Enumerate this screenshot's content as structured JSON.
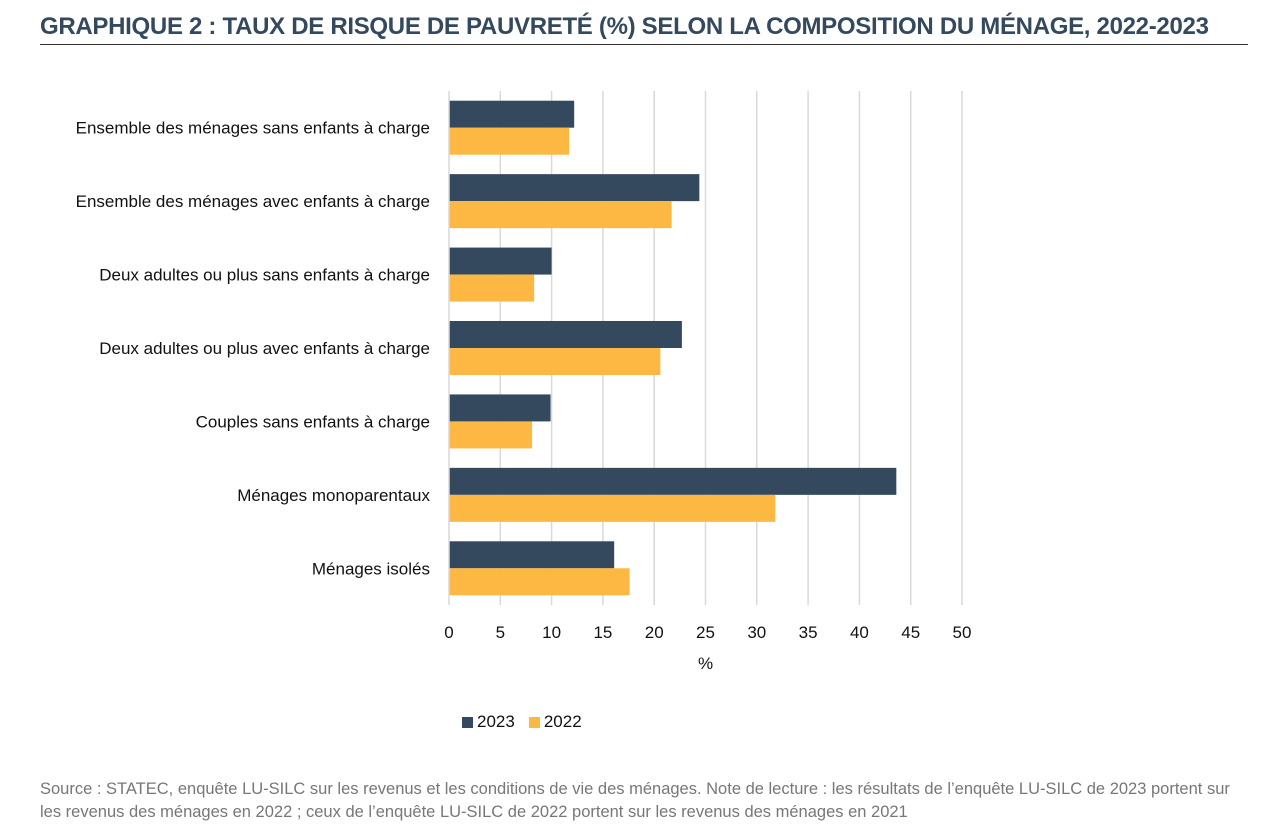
{
  "title": "GRAPHIQUE 2 : TAUX DE RISQUE DE PAUVRETÉ (%) SELON LA COMPOSITION DU MÉNAGE, 2022-2023",
  "chart_data": {
    "type": "bar",
    "orientation": "horizontal",
    "categories": [
      "Ensemble des ménages sans enfants à charge",
      "Ensemble des ménages avec enfants à charge",
      "Deux adultes ou plus sans enfants à charge",
      "Deux adultes ou plus avec enfants à charge",
      "Couples sans enfants à charge",
      "Ménages monoparentaux",
      "Ménages isolés"
    ],
    "series": [
      {
        "name": "2023",
        "color": "#34495e",
        "values": [
          12.2,
          24.4,
          10.0,
          22.7,
          9.9,
          43.6,
          16.1
        ]
      },
      {
        "name": "2022",
        "color": "#fcb842",
        "values": [
          11.7,
          21.7,
          8.3,
          20.6,
          8.1,
          31.8,
          17.6
        ]
      }
    ],
    "xlim": [
      0,
      50
    ],
    "xticks": [
      0,
      5,
      10,
      15,
      20,
      25,
      30,
      35,
      40,
      45,
      50
    ],
    "xlabel": "%",
    "grid": true,
    "legend_position": "bottom"
  },
  "source": "Source : STATEC, enquête LU-SILC sur les revenus et les conditions de vie des ménages. Note de lecture : les résultats de l’enquête LU-SILC de 2023 portent sur les revenus des ménages en 2022 ; ceux de l’enquête LU-SILC de 2022 portent sur les revenus des ménages en 2021"
}
